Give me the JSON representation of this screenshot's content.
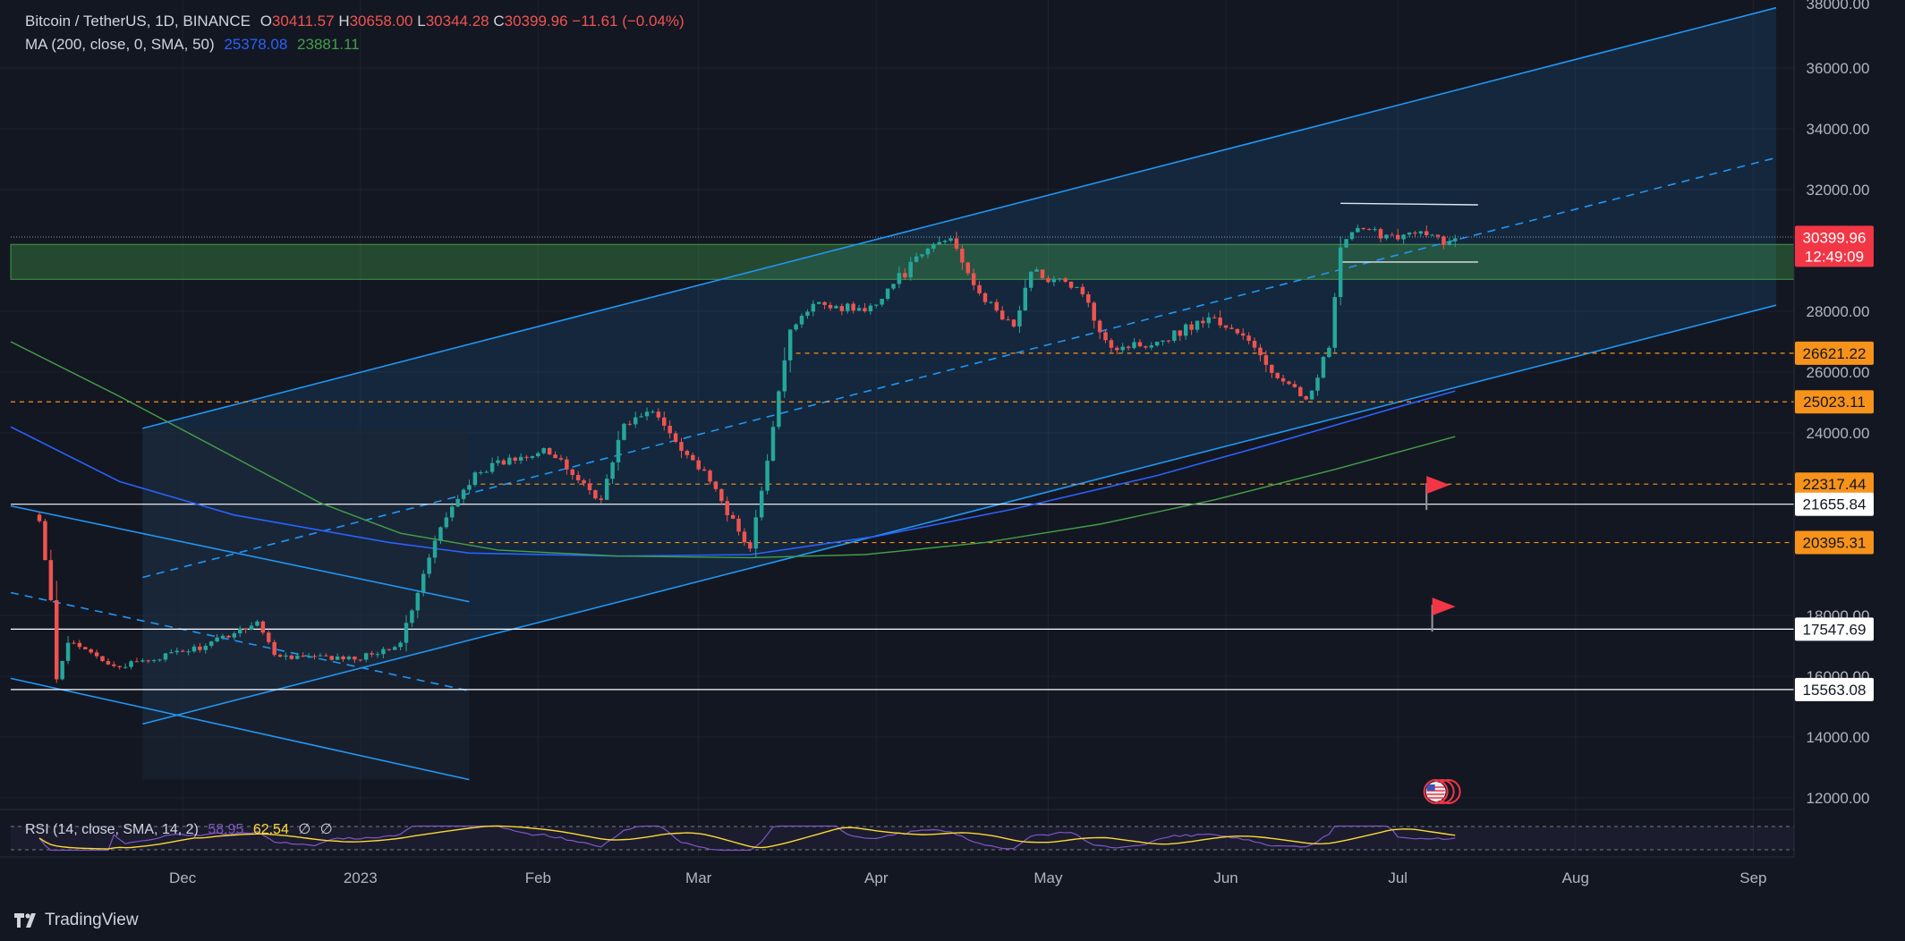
{
  "header": {
    "symbol": "Bitcoin / TetherUS, 1D, BINANCE",
    "o_label": "O",
    "o_value": "30411.57",
    "h_label": "H",
    "h_value": "30658.00",
    "l_label": "L",
    "l_value": "30344.28",
    "c_label": "C",
    "c_value": "30399.96",
    "change": "−11.61 (−0.04%)"
  },
  "ma_legend": {
    "label": "MA (200, close, 0, SMA, 50)",
    "value1": "25378.08",
    "value2": "23881.11"
  },
  "rsi_legend": {
    "label": "RSI (14, close, SMA, 14, 2)",
    "value1": "58.95",
    "value2": "62.54",
    "value3": "∅",
    "value4": "∅"
  },
  "brand": {
    "name": "TradingView"
  },
  "colors": {
    "background": "#131722",
    "up": "#26a69a",
    "down": "#ef5350",
    "channel": "#2196f3",
    "ma_fast": "#2962ff",
    "ma_slow": "#43a047",
    "zone": "#4caf50",
    "orange_level": "#f7931a",
    "rsi_line": "#7e57c2",
    "rsi_ma": "#fdd835"
  },
  "chart_data": {
    "type": "candlestick",
    "symbol": "Bitcoin / TetherUS",
    "interval": "1D",
    "exchange": "BINANCE",
    "price_axis": {
      "ticks": [
        36000,
        34000,
        32000,
        28000,
        26000,
        24000,
        18000,
        16000,
        14000,
        12000
      ],
      "tick_labels": [
        "36000.00",
        "34000.00",
        "32000.00",
        "28000.00",
        "26000.00",
        "24000.00",
        "18000.00",
        "16000.00",
        "14000.00",
        "12000.00"
      ],
      "ylim": [
        11000,
        38000
      ]
    },
    "time_axis": {
      "labels": [
        {
          "text": "Dec",
          "date": "2022-12-01"
        },
        {
          "text": "2023",
          "date": "2023-01-01"
        },
        {
          "text": "Feb",
          "date": "2023-02-01"
        },
        {
          "text": "Mar",
          "date": "2023-03-01"
        },
        {
          "text": "Apr",
          "date": "2023-04-01"
        },
        {
          "text": "May",
          "date": "2023-05-01"
        },
        {
          "text": "Jun",
          "date": "2023-06-01"
        },
        {
          "text": "Jul",
          "date": "2023-07-01"
        },
        {
          "text": "Aug",
          "date": "2023-08-01"
        },
        {
          "text": "Sep",
          "date": "2023-09-01"
        }
      ],
      "range": [
        "2022-11-01",
        "2023-09-05"
      ]
    },
    "price_labels": [
      {
        "value": 30399.96,
        "text": "30399.96",
        "sub": "12:49:09",
        "style": "current"
      },
      {
        "value": 26621.22,
        "text": "26621.22",
        "style": "orange"
      },
      {
        "value": 25023.11,
        "text": "25023.11",
        "style": "orange"
      },
      {
        "value": 22317.44,
        "text": "22317.44",
        "style": "orange"
      },
      {
        "value": 21655.84,
        "text": "21655.84",
        "style": "white"
      },
      {
        "value": 20395.31,
        "text": "20395.31",
        "style": "orange"
      },
      {
        "value": 17547.69,
        "text": "17547.69",
        "style": "white"
      },
      {
        "value": 15563.08,
        "text": "15563.08",
        "style": "white"
      }
    ],
    "anchors": [
      {
        "date": "2022-11-06",
        "close": 21100
      },
      {
        "date": "2022-11-08",
        "close": 18500
      },
      {
        "date": "2022-11-09",
        "close": 15900
      },
      {
        "date": "2022-11-11",
        "close": 17100
      },
      {
        "date": "2022-11-20",
        "close": 16300
      },
      {
        "date": "2022-12-05",
        "close": 17000
      },
      {
        "date": "2022-12-14",
        "close": 17800
      },
      {
        "date": "2022-12-17",
        "close": 16700
      },
      {
        "date": "2022-12-31",
        "close": 16550
      },
      {
        "date": "2023-01-08",
        "close": 17100
      },
      {
        "date": "2023-01-13",
        "close": 19900
      },
      {
        "date": "2023-01-15",
        "close": 20900
      },
      {
        "date": "2023-01-21",
        "close": 22700
      },
      {
        "date": "2023-02-02",
        "close": 23500
      },
      {
        "date": "2023-02-12",
        "close": 21800
      },
      {
        "date": "2023-02-16",
        "close": 24300
      },
      {
        "date": "2023-02-21",
        "close": 24700
      },
      {
        "date": "2023-03-03",
        "close": 22400
      },
      {
        "date": "2023-03-09",
        "close": 20400
      },
      {
        "date": "2023-03-10",
        "close": 20200
      },
      {
        "date": "2023-03-14",
        "close": 24200
      },
      {
        "date": "2023-03-17",
        "close": 27400
      },
      {
        "date": "2023-03-22",
        "close": 28300
      },
      {
        "date": "2023-03-30",
        "close": 28000
      },
      {
        "date": "2023-04-11",
        "close": 30200
      },
      {
        "date": "2023-04-14",
        "close": 30400
      },
      {
        "date": "2023-04-20",
        "close": 28300
      },
      {
        "date": "2023-04-25",
        "close": 27500
      },
      {
        "date": "2023-04-28",
        "close": 29300
      },
      {
        "date": "2023-05-06",
        "close": 28800
      },
      {
        "date": "2023-05-12",
        "close": 26800
      },
      {
        "date": "2023-05-20",
        "close": 27000
      },
      {
        "date": "2023-05-29",
        "close": 27800
      },
      {
        "date": "2023-06-04",
        "close": 27200
      },
      {
        "date": "2023-06-10",
        "close": 25800
      },
      {
        "date": "2023-06-15",
        "close": 25100
      },
      {
        "date": "2023-06-19",
        "close": 26800
      },
      {
        "date": "2023-06-21",
        "close": 30100
      },
      {
        "date": "2023-06-23",
        "close": 30600
      },
      {
        "date": "2023-07-06",
        "close": 30500
      },
      {
        "date": "2023-07-10",
        "close": 30300
      },
      {
        "date": "2023-07-11",
        "close": 30400
      }
    ],
    "last_close": 30399.96,
    "series": [
      {
        "name": "MA (200, close, 0, SMA)",
        "last": 25378.08
      },
      {
        "name": "MA (50)",
        "last": 23881.11
      }
    ],
    "zones": [
      {
        "from": 29050,
        "to": 30200,
        "color": "#4caf50"
      }
    ],
    "rsi": {
      "value": 58.95,
      "ma": 62.54
    }
  }
}
